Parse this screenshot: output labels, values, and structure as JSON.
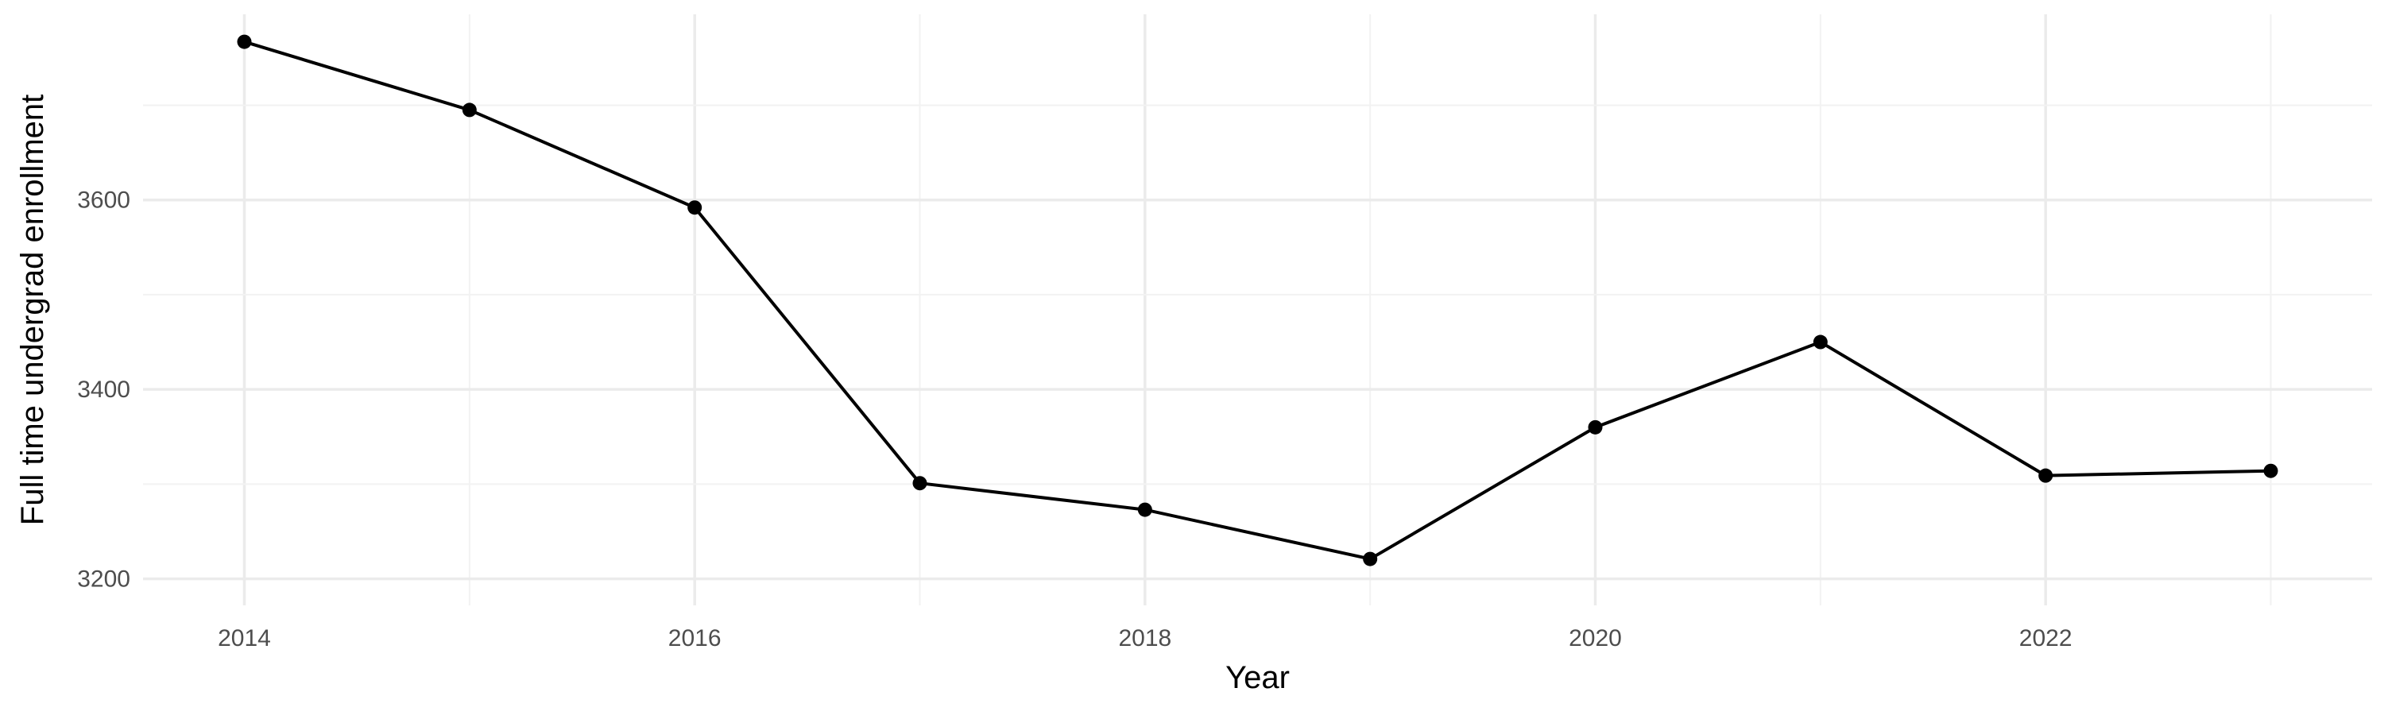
{
  "chart_data": {
    "type": "line",
    "title": "",
    "xlabel": "Year",
    "ylabel": "Full time undergrad enrollment",
    "x": [
      2014,
      2015,
      2016,
      2017,
      2018,
      2019,
      2020,
      2021,
      2022,
      2023
    ],
    "series": [
      {
        "values": [
          3767,
          3695,
          3592,
          3301,
          3273,
          3221,
          3360,
          3450,
          3309,
          3314
        ],
        "color": "#000000"
      }
    ],
    "xlim": [
      2013.55,
      2023.45
    ],
    "ylim": [
      3172,
      3796
    ],
    "x_ticks": [
      2014,
      2016,
      2018,
      2020,
      2022
    ],
    "x_tick_labels": [
      "2014",
      "2016",
      "2018",
      "2020",
      "2022"
    ],
    "y_ticks": [
      3200,
      3400,
      3600
    ],
    "y_tick_labels": [
      "3200",
      "3400",
      "3600"
    ],
    "y_minor_ticks": [
      3300,
      3500,
      3700
    ],
    "grid": true,
    "legend": "none",
    "colors": {
      "line": "#000000",
      "grid_major": "#ebebeb",
      "grid_minor": "#f2f2f2",
      "tick_text": "#4d4d4d"
    }
  }
}
